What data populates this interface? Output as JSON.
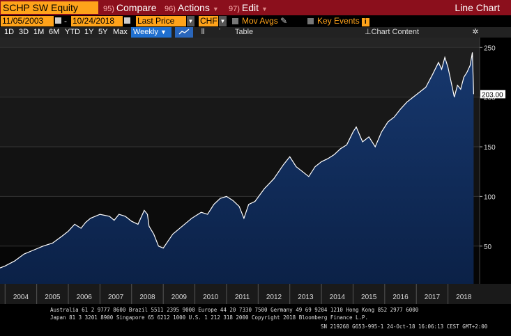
{
  "toolbar": {
    "ticker": "SCHP SW Equity",
    "compare": {
      "num": "95)",
      "label": "Compare"
    },
    "actions": {
      "num": "96)",
      "label": "Actions"
    },
    "edit": {
      "num": "97)",
      "label": "Edit"
    },
    "view_title": "Line Chart"
  },
  "settings": {
    "start_date": "11/05/2003",
    "dash": "-",
    "end_date": "10/24/2018",
    "price_field": "Last Price",
    "currency": "CHF",
    "mov_avgs": "Mov Avgs",
    "key_events": "Key Events",
    "info_glyph": "i"
  },
  "periods": [
    "1D",
    "3D",
    "1M",
    "6M",
    "YTD",
    "1Y",
    "5Y",
    "Max"
  ],
  "frequency": "Weekly",
  "view_toolbar": {
    "table": "Table",
    "chart_content": "Chart Content"
  },
  "icons": [
    "calendar-icon",
    "dropdown-arrow-icon",
    "pencil-icon",
    "line-chart-icon",
    "bar-style-icon",
    "settings-gear-icon"
  ],
  "colors": {
    "accent_orange": "#ffa31a",
    "header_red": "#8b0f1c",
    "series_line": "#ffffff",
    "area_fill": "#0e2a55",
    "price_label_bg": "#ffffff"
  },
  "chart_data": {
    "type": "area",
    "x_ticks": [
      "2004",
      "2005",
      "2006",
      "2007",
      "2008",
      "2009",
      "2010",
      "2011",
      "2012",
      "2013",
      "2014",
      "2015",
      "2016",
      "2017",
      "2018"
    ],
    "y_ticks": [
      50,
      100,
      150,
      200,
      250
    ],
    "ylim": [
      12,
      260
    ],
    "last_value": "203.00",
    "grid": true,
    "series": [
      {
        "x": [
          2003.84,
          2004.0,
          2004.3,
          2004.6,
          2004.9,
          2005.2,
          2005.5,
          2005.8,
          2006.0,
          2006.2,
          2006.4,
          2006.55,
          2006.7,
          2007.0,
          2007.3,
          2007.45,
          2007.6,
          2007.8,
          2008.0,
          2008.2,
          2008.4,
          2008.5,
          2008.55,
          2008.7,
          2008.85,
          2009.0,
          2009.15,
          2009.3,
          2009.6,
          2009.9,
          2010.2,
          2010.4,
          2010.6,
          2010.8,
          2011.0,
          2011.2,
          2011.4,
          2011.55,
          2011.7,
          2011.9,
          2012.2,
          2012.5,
          2012.8,
          2013.0,
          2013.2,
          2013.4,
          2013.6,
          2013.8,
          2014.0,
          2014.2,
          2014.4,
          2014.6,
          2014.8,
          2015.0,
          2015.1,
          2015.3,
          2015.5,
          2015.7,
          2015.9,
          2016.0,
          2016.1,
          2016.3,
          2016.5,
          2016.7,
          2016.9,
          2017.1,
          2017.3,
          2017.5,
          2017.7,
          2017.8,
          2017.9,
          2018.0,
          2018.1,
          2018.2,
          2018.3,
          2018.4,
          2018.5,
          2018.6,
          2018.7,
          2018.77,
          2018.81
        ],
        "values": [
          28,
          30,
          35,
          42,
          46,
          50,
          53,
          60,
          65,
          72,
          68,
          74,
          78,
          82,
          80,
          76,
          82,
          80,
          75,
          72,
          86,
          82,
          70,
          62,
          50,
          48,
          55,
          62,
          70,
          78,
          84,
          82,
          92,
          98,
          100,
          96,
          90,
          78,
          92,
          95,
          108,
          118,
          132,
          140,
          130,
          125,
          120,
          130,
          135,
          138,
          142,
          148,
          152,
          165,
          170,
          155,
          160,
          150,
          165,
          170,
          175,
          180,
          188,
          195,
          200,
          205,
          210,
          222,
          235,
          228,
          240,
          230,
          215,
          200,
          212,
          208,
          220,
          225,
          232,
          245,
          203
        ]
      }
    ]
  },
  "footer": {
    "line1": "Australia 61 2 9777 8600 Brazil 5511 2395 9000 Europe 44 20 7330 7500 Germany 49 69 9204 1210 Hong Kong 852 2977 6000",
    "line2": "Japan 81 3 3201 8900       Singapore 65 6212 1000      U.S. 1 212 318 2000        Copyright 2018 Bloomberg Finance L.P.",
    "line3": "SN 219268 G653-995-1 24-Oct-18 16:06:13 CEST GMT+2:00"
  }
}
